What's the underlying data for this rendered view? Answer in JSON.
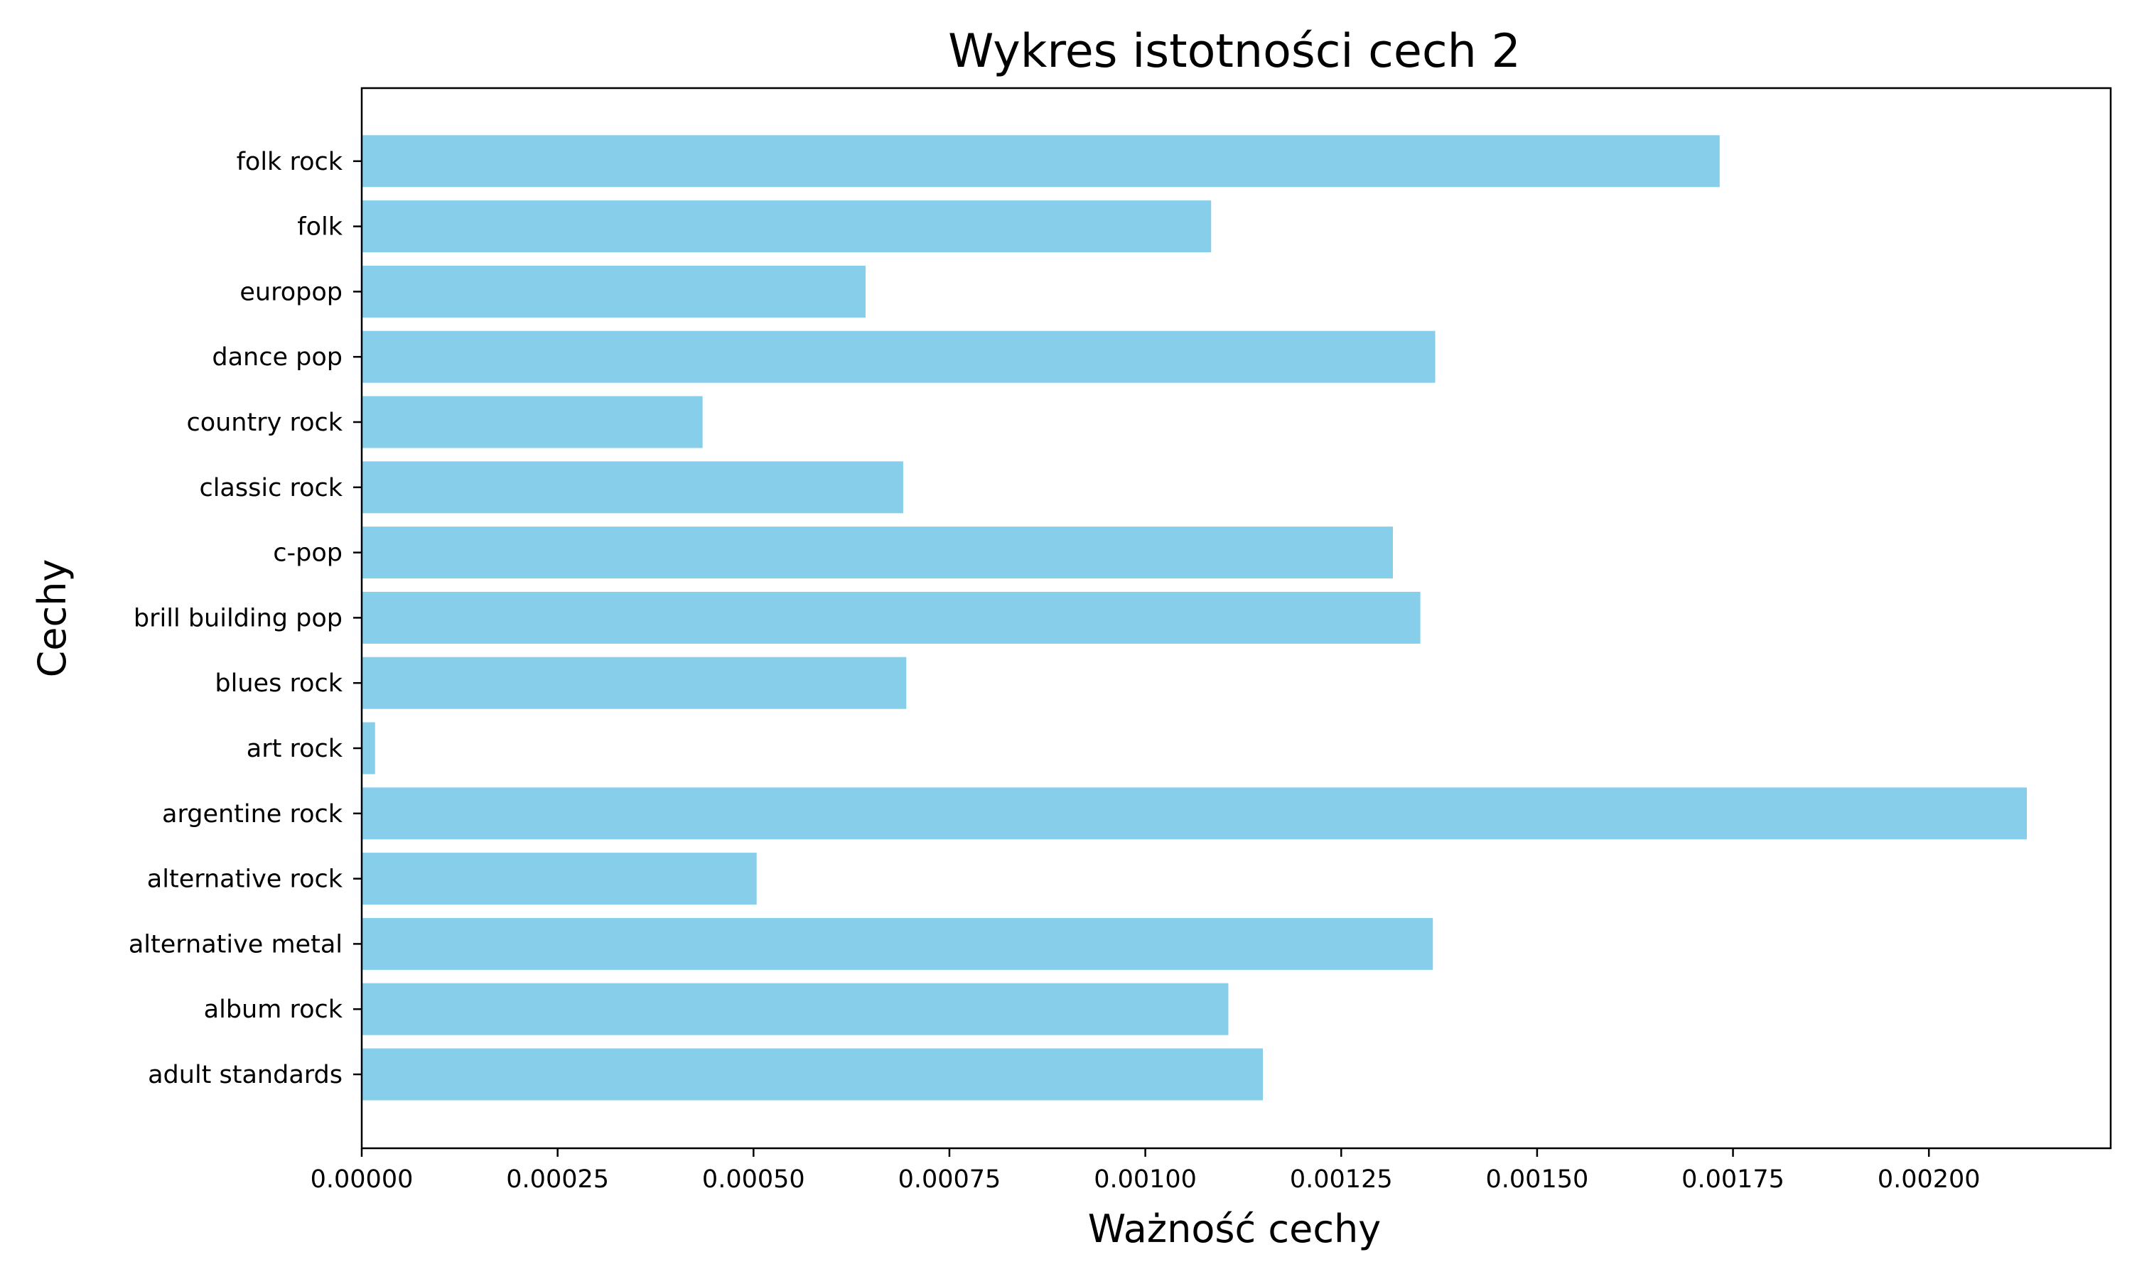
{
  "chart_data": {
    "type": "bar",
    "orientation": "horizontal",
    "title": "Wykres istotności cech 2",
    "xlabel": "Ważność cechy",
    "ylabel": "Cechy",
    "categories": [
      "adult standards",
      "album rock",
      "alternative metal",
      "alternative rock",
      "argentine rock",
      "art rock",
      "blues rock",
      "brill building pop",
      "c-pop",
      "classic rock",
      "country rock",
      "dance pop",
      "europop",
      "folk",
      "folk rock"
    ],
    "values": [
      0.00115,
      0.001106,
      0.001367,
      0.000504,
      0.002125,
      1.7e-05,
      0.000695,
      0.001351,
      0.001316,
      0.000691,
      0.000435,
      0.00137,
      0.000643,
      0.001084,
      0.001733
    ],
    "xlim": [
      0,
      0.002232
    ],
    "xticks": [
      0,
      0.00025,
      0.0005,
      0.00075,
      0.001,
      0.00125,
      0.0015,
      0.00175,
      0.002
    ],
    "xtick_labels": [
      "0.00000",
      "0.00025",
      "0.00050",
      "0.00075",
      "0.00100",
      "0.00125",
      "0.00150",
      "0.00175",
      "0.00200"
    ],
    "grid": false,
    "bar_color": "#87ceeb"
  }
}
